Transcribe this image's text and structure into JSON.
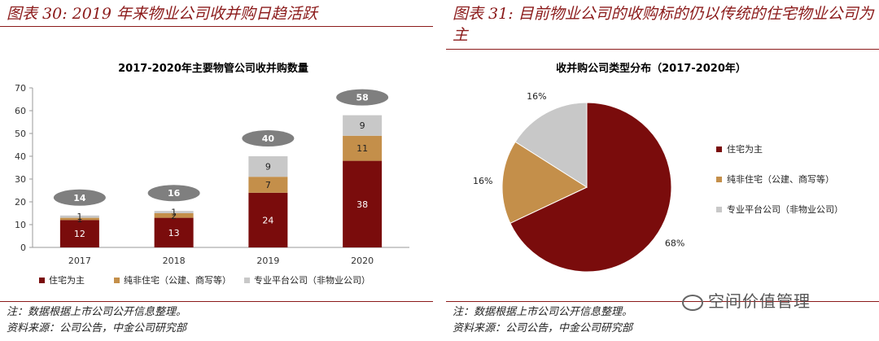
{
  "left": {
    "figure_title": "图表 30: 2019 年来物业公司收并购日趋活跃",
    "note": "注：数据根据上市公司公开信息整理。",
    "source": "资料来源：公司公告，中金公司研究部"
  },
  "right": {
    "figure_title": "图表 31: 目前物业公司的收购标的仍以传统的住宅物业公司为主",
    "note": "注：数据根据上市公司公开信息整理。",
    "source": "资料来源：公司公告，中金公司研究部"
  },
  "watermark": "空间价值管理",
  "chart_data": [
    {
      "type": "bar",
      "stacked": true,
      "title": "2017-2020年主要物管公司收并购数量",
      "categories": [
        "2017",
        "2018",
        "2019",
        "2020"
      ],
      "series": [
        {
          "name": "住宅为主",
          "values": [
            12,
            13,
            24,
            38
          ],
          "color": "#7a0c0c"
        },
        {
          "name": "纯非住宅（公建、商写等）",
          "values": [
            1,
            2,
            7,
            11
          ],
          "color": "#c48f4a"
        },
        {
          "name": "专业平台公司（非物业公司）",
          "values": [
            1,
            1,
            9,
            9
          ],
          "color": "#c8c8c8"
        }
      ],
      "totals": [
        14,
        16,
        40,
        58
      ],
      "ylim": [
        0,
        70
      ],
      "yticks": [
        0,
        10,
        20,
        30,
        40,
        50,
        60,
        70
      ],
      "legend_position": "bottom",
      "grid": false
    },
    {
      "type": "pie",
      "title": "收并购公司类型分布（2017-2020年）",
      "labels": [
        "住宅为主",
        "纯非住宅（公建、商写等）",
        "专业平台公司（非物业公司）"
      ],
      "values": [
        68,
        16,
        16
      ],
      "value_labels": [
        "68%",
        "16%",
        "16%"
      ],
      "colors": [
        "#7a0c0c",
        "#c48f4a",
        "#c8c8c8"
      ],
      "legend_position": "right"
    }
  ]
}
